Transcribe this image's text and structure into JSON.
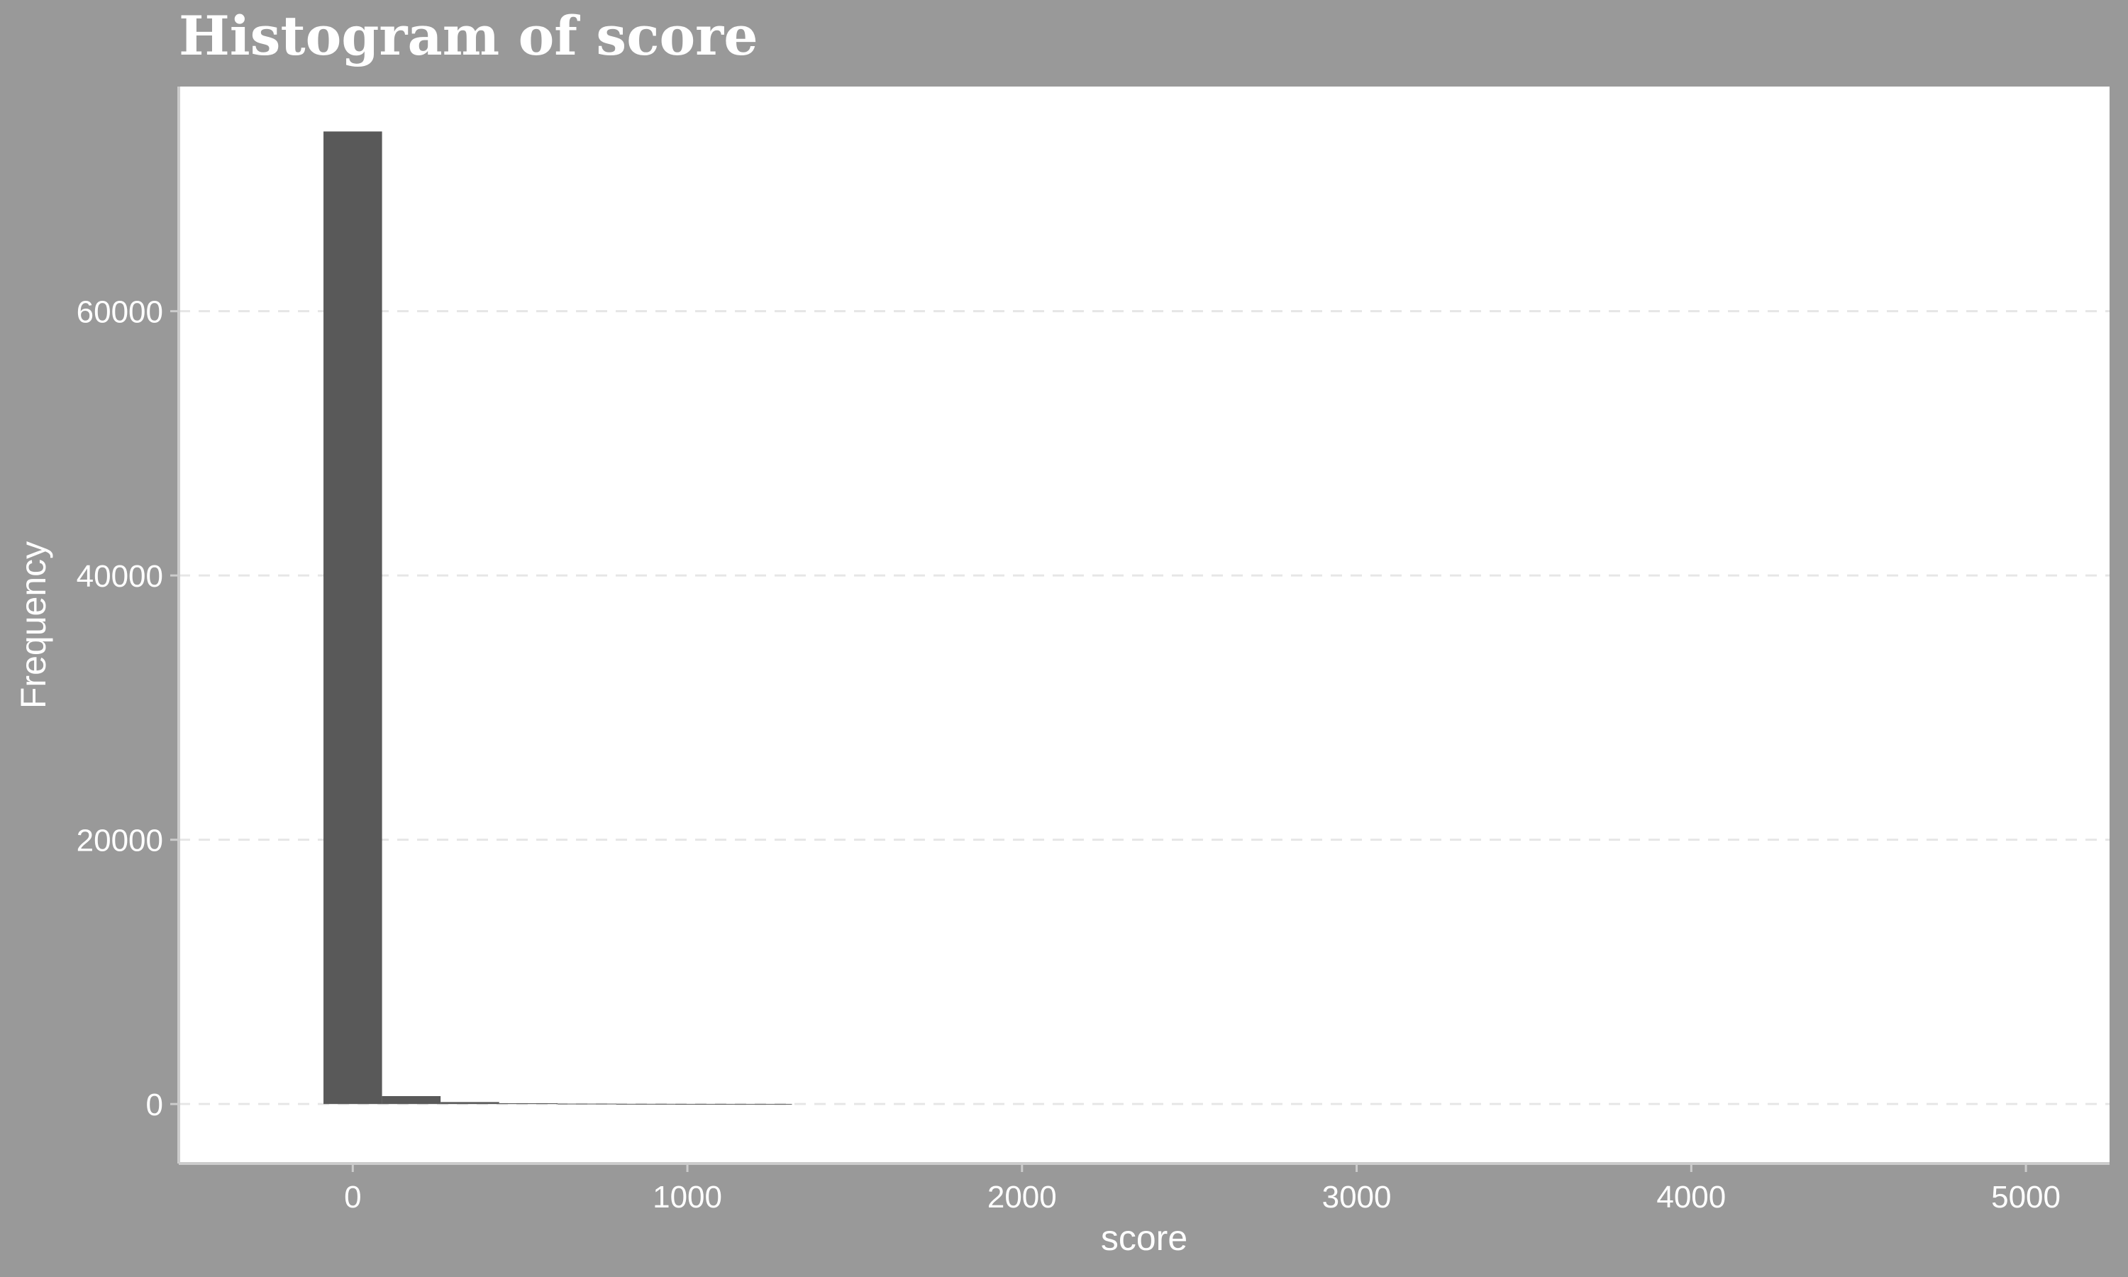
{
  "chart_data": {
    "type": "bar",
    "title": "Histogram of score",
    "xlabel": "score",
    "ylabel": "Frequency",
    "xlim": [
      -520,
      5250
    ],
    "ylim": [
      -4500,
      77000
    ],
    "x_ticks": [
      0,
      1000,
      2000,
      3000,
      4000,
      5000
    ],
    "y_ticks": [
      0,
      20000,
      40000,
      60000
    ],
    "bin_width": 175,
    "bins": [
      {
        "x0": -87.5,
        "x1": 87.5,
        "count": 73600
      },
      {
        "x0": 87.5,
        "x1": 262.5,
        "count": 600
      },
      {
        "x0": 262.5,
        "x1": 437.5,
        "count": 150
      },
      {
        "x0": 437.5,
        "x1": 612.5,
        "count": 60
      },
      {
        "x0": 612.5,
        "x1": 787.5,
        "count": 30
      },
      {
        "x0": 787.5,
        "x1": 962.5,
        "count": 15
      },
      {
        "x0": 962.5,
        "x1": 1137.5,
        "count": 8
      },
      {
        "x0": 1137.5,
        "x1": 1312.5,
        "count": 4
      }
    ],
    "grid": {
      "horizontal": "dashed",
      "vertical": false
    },
    "legend": "none",
    "colors": {
      "bar": "#595959",
      "panel": "#ffffff",
      "background": "#999999",
      "grid": "#e6e6e6",
      "text": "#ffffff"
    }
  }
}
